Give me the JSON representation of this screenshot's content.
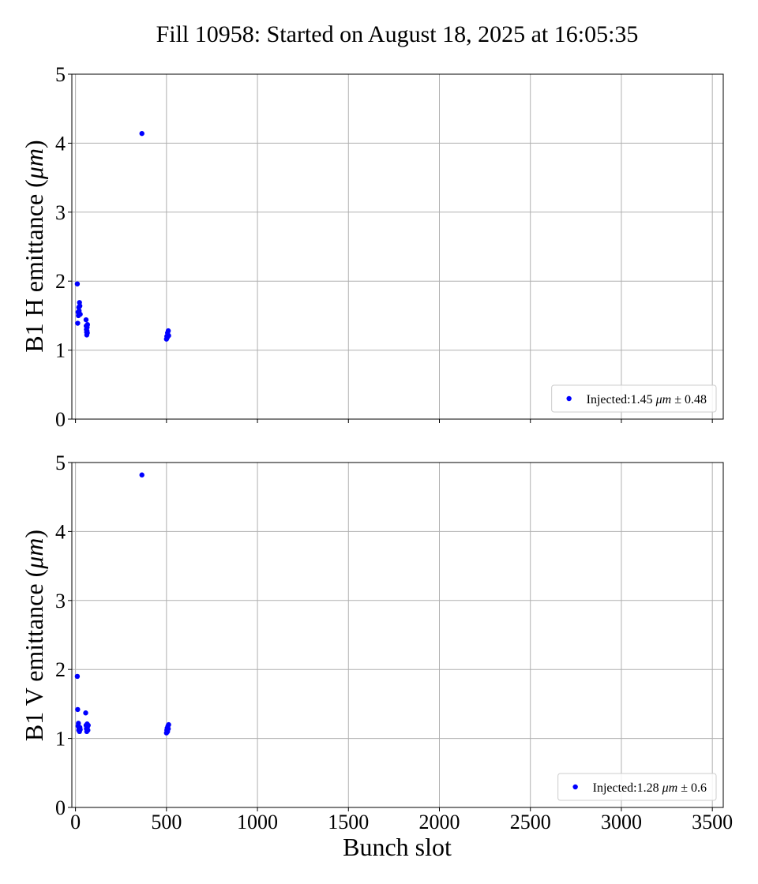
{
  "chart_data": [
    {
      "type": "scatter",
      "title": "Fill 10958: Started on August 18, 2025 at 16:05:35",
      "xlabel": "Bunch slot",
      "ylabel": "B1 H emittance (μm)",
      "xlim": [
        -20,
        3560
      ],
      "ylim": [
        0,
        5
      ],
      "xticks": [
        0,
        500,
        1000,
        1500,
        2000,
        2500,
        3000,
        3500
      ],
      "yticks": [
        0,
        1,
        2,
        3,
        4,
        5
      ],
      "grid": true,
      "legend_position": "lower-right",
      "color": "#0000ff",
      "series": [
        {
          "name": "Injected:1.45 μm ± 0.48",
          "points": [
            [
              10,
              1.96
            ],
            [
              12,
              1.39
            ],
            [
              14,
              1.55
            ],
            [
              16,
              1.5
            ],
            [
              18,
              1.62
            ],
            [
              20,
              1.57
            ],
            [
              22,
              1.69
            ],
            [
              24,
              1.64
            ],
            [
              26,
              1.52
            ],
            [
              58,
              1.44
            ],
            [
              59,
              1.35
            ],
            [
              60,
              1.3
            ],
            [
              61,
              1.26
            ],
            [
              62,
              1.22
            ],
            [
              63,
              1.28
            ],
            [
              64,
              1.33
            ],
            [
              65,
              1.25
            ],
            [
              66,
              1.37
            ],
            [
              365,
              4.14
            ],
            [
              500,
              1.16
            ],
            [
              502,
              1.2
            ],
            [
              504,
              1.18
            ],
            [
              506,
              1.25
            ],
            [
              508,
              1.22
            ],
            [
              510,
              1.28
            ],
            [
              512,
              1.21
            ]
          ]
        }
      ]
    },
    {
      "type": "scatter",
      "xlabel": "Bunch slot",
      "ylabel": "B1 V emittance (μm)",
      "xlim": [
        -20,
        3560
      ],
      "ylim": [
        0,
        5
      ],
      "xticks": [
        0,
        500,
        1000,
        1500,
        2000,
        2500,
        3000,
        3500
      ],
      "yticks": [
        0,
        1,
        2,
        3,
        4,
        5
      ],
      "grid": true,
      "legend_position": "lower-right",
      "color": "#0000ff",
      "series": [
        {
          "name": "Injected:1.28 μm ± 0.6",
          "points": [
            [
              10,
              1.9
            ],
            [
              12,
              1.42
            ],
            [
              14,
              1.18
            ],
            [
              16,
              1.22
            ],
            [
              18,
              1.12
            ],
            [
              20,
              1.15
            ],
            [
              22,
              1.1
            ],
            [
              24,
              1.16
            ],
            [
              26,
              1.13
            ],
            [
              56,
              1.37
            ],
            [
              58,
              1.19
            ],
            [
              60,
              1.14
            ],
            [
              62,
              1.1
            ],
            [
              64,
              1.21
            ],
            [
              66,
              1.17
            ],
            [
              68,
              1.12
            ],
            [
              70,
              1.19
            ],
            [
              365,
              4.82
            ],
            [
              500,
              1.08
            ],
            [
              502,
              1.12
            ],
            [
              504,
              1.15
            ],
            [
              506,
              1.1
            ],
            [
              508,
              1.18
            ],
            [
              510,
              1.14
            ],
            [
              512,
              1.2
            ]
          ]
        }
      ]
    }
  ]
}
